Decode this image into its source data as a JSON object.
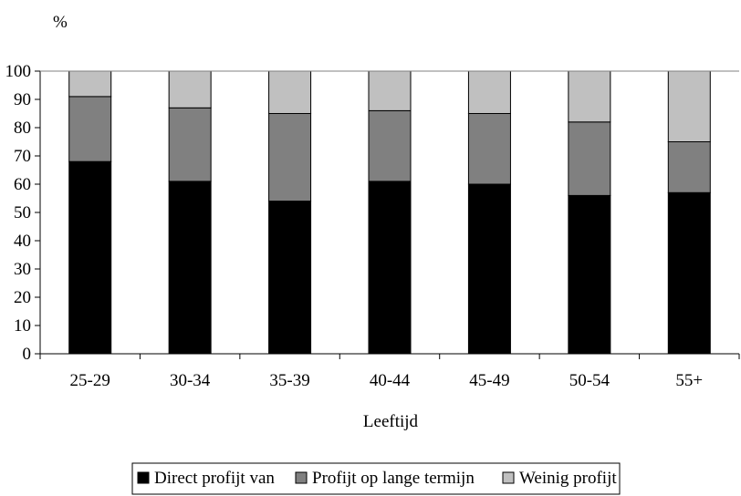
{
  "chart_data": {
    "type": "bar",
    "stacked": true,
    "ylabel": "%",
    "xlabel": "Leeftijd",
    "ylim": [
      0,
      100
    ],
    "yticks": [
      0,
      10,
      20,
      30,
      40,
      50,
      60,
      70,
      80,
      90,
      100
    ],
    "categories": [
      "25-29",
      "30-34",
      "35-39",
      "40-44",
      "45-49",
      "50-54",
      "55+"
    ],
    "series": [
      {
        "name": "Direct profijt van",
        "color": "#000000",
        "values": [
          68,
          61,
          54,
          61,
          60,
          56,
          57
        ]
      },
      {
        "name": "Profijt op lange termijn",
        "color": "#808080",
        "values": [
          23,
          26,
          31,
          25,
          25,
          26,
          18
        ]
      },
      {
        "name": "Weinig profijt",
        "color": "#c0c0c0",
        "values": [
          9,
          13,
          15,
          14,
          15,
          18,
          25
        ]
      }
    ],
    "grid": false,
    "legend_position": "bottom"
  }
}
